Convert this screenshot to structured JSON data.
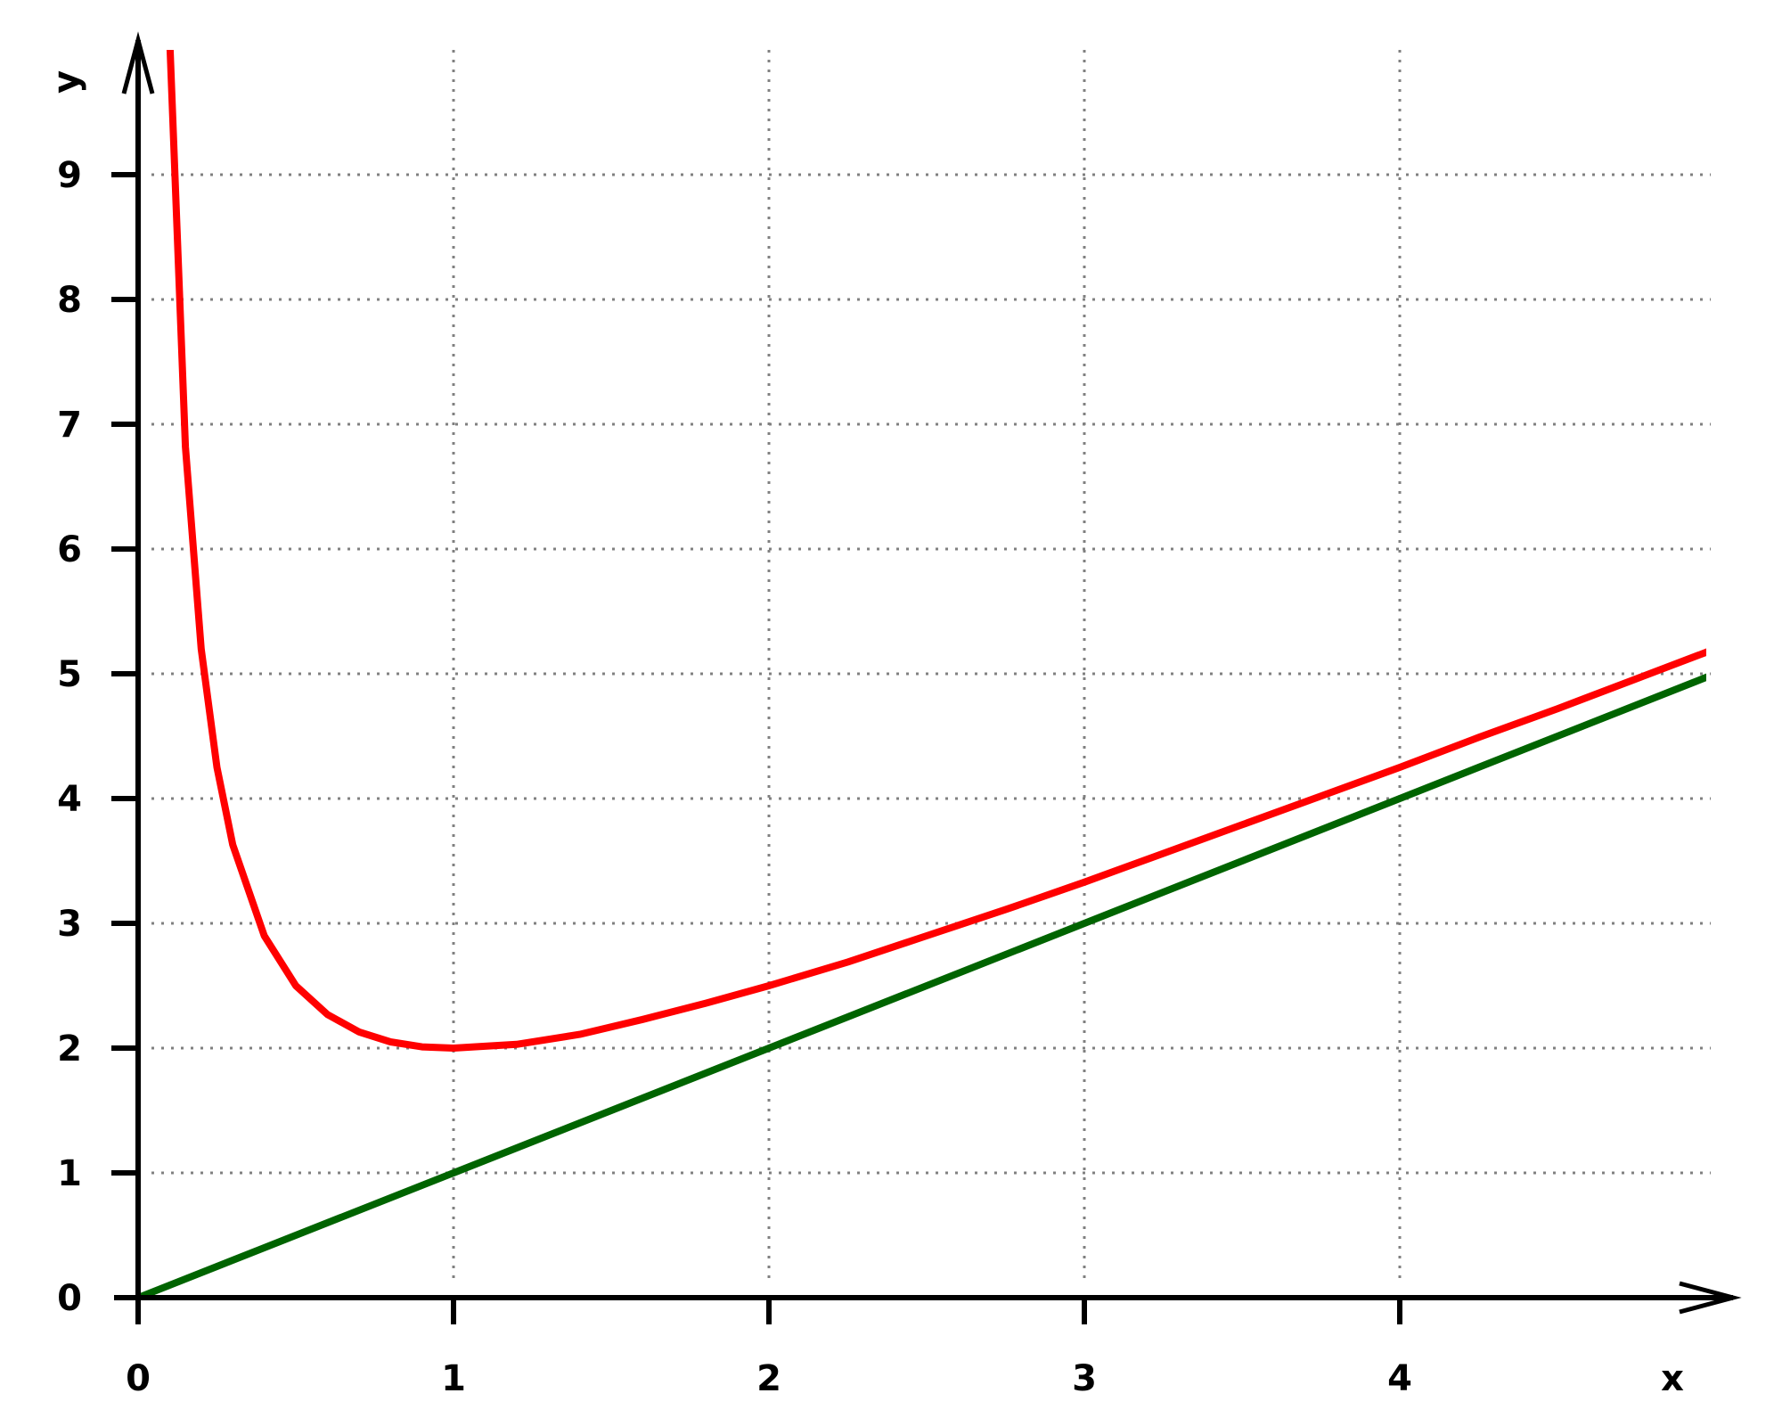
{
  "chart_data": {
    "type": "line",
    "xlabel": "x",
    "ylabel": "y",
    "xlim": [
      0,
      5
    ],
    "ylim": [
      0,
      9.96
    ],
    "xticks": [
      0,
      1,
      2,
      3,
      4
    ],
    "xtick_labels": [
      "0",
      "1",
      "2",
      "3",
      "4"
    ],
    "yticks": [
      0,
      1,
      2,
      3,
      4,
      5,
      6,
      7,
      8,
      9
    ],
    "ytick_labels": [
      "0",
      "1",
      "2",
      "3",
      "4",
      "5",
      "6",
      "7",
      "8",
      "9"
    ],
    "grid": true,
    "grid_style": "dotted",
    "series": [
      {
        "color": "#ff0000",
        "points": [
          {
            "x": 0.1,
            "y": 10.1
          },
          {
            "x": 0.15,
            "y": 6.82
          },
          {
            "x": 0.2,
            "y": 5.2
          },
          {
            "x": 0.25,
            "y": 4.25
          },
          {
            "x": 0.3,
            "y": 3.63
          },
          {
            "x": 0.4,
            "y": 2.9
          },
          {
            "x": 0.5,
            "y": 2.5
          },
          {
            "x": 0.6,
            "y": 2.27
          },
          {
            "x": 0.7,
            "y": 2.13
          },
          {
            "x": 0.8,
            "y": 2.05
          },
          {
            "x": 0.9,
            "y": 2.01
          },
          {
            "x": 1.0,
            "y": 2.0
          },
          {
            "x": 1.2,
            "y": 2.03
          },
          {
            "x": 1.4,
            "y": 2.11
          },
          {
            "x": 1.6,
            "y": 2.23
          },
          {
            "x": 1.8,
            "y": 2.36
          },
          {
            "x": 2.0,
            "y": 2.5
          },
          {
            "x": 2.25,
            "y": 2.69
          },
          {
            "x": 2.5,
            "y": 2.9
          },
          {
            "x": 2.75,
            "y": 3.11
          },
          {
            "x": 3.0,
            "y": 3.33
          },
          {
            "x": 3.25,
            "y": 3.56
          },
          {
            "x": 3.5,
            "y": 3.79
          },
          {
            "x": 3.75,
            "y": 4.02
          },
          {
            "x": 4.0,
            "y": 4.25
          },
          {
            "x": 4.25,
            "y": 4.49
          },
          {
            "x": 4.5,
            "y": 4.72
          },
          {
            "x": 4.75,
            "y": 4.96
          },
          {
            "x": 5.0,
            "y": 5.2
          }
        ]
      },
      {
        "color": "#006400",
        "points": [
          {
            "x": 0,
            "y": 0
          },
          {
            "x": 5,
            "y": 5
          }
        ]
      }
    ]
  }
}
